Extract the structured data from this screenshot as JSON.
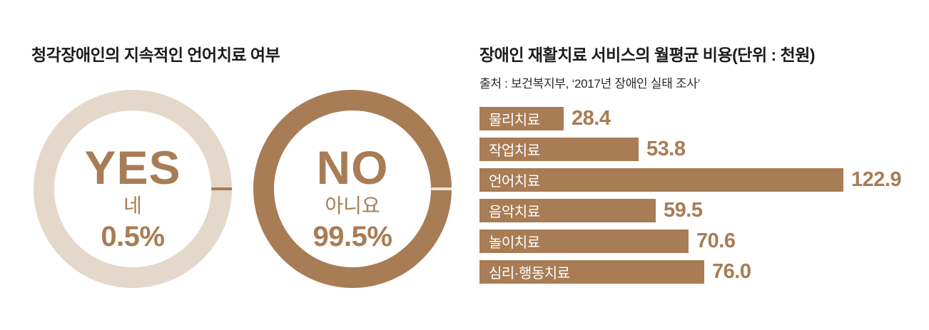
{
  "palette": {
    "brown": "#A87C55",
    "beige": "#E3D8C9",
    "gap_light": "#EAE3D8",
    "title_dark": "#1C1C1C",
    "background": "#FFFFFF"
  },
  "left_chart": {
    "title": "청각장애인의 지속적인 언어치료 여부",
    "donuts": [
      {
        "id": "yes",
        "label_en": "YES",
        "label_ko": "네",
        "percent_text": "0.5%",
        "value": 0.5,
        "ring_color": "#E3D8C9",
        "slice_color": "#A87C55",
        "slice_percent": 0.5,
        "text_color": "#A87C55"
      },
      {
        "id": "no",
        "label_en": "NO",
        "label_ko": "아니요",
        "percent_text": "99.5%",
        "value": 99.5,
        "ring_color": "#A87C55",
        "slice_color": "#EAE3D8",
        "slice_percent": 0.5,
        "text_color": "#A87C55"
      }
    ]
  },
  "right_chart": {
    "title": "장애인 재활치료 서비스의 월평균 비용(단위 : 천원)",
    "source": "출처 : 보건복지부, ‘2017년 장애인 실태 조사’",
    "unit": "천원",
    "bars": [
      {
        "label": "물리치료",
        "value": 28.4,
        "display": "28.4"
      },
      {
        "label": "작업치료",
        "value": 53.8,
        "display": "53.8"
      },
      {
        "label": "언어치료",
        "value": 122.9,
        "display": "122.9"
      },
      {
        "label": "음악치료",
        "value": 59.5,
        "display": "59.5"
      },
      {
        "label": "놀이치료",
        "value": 70.6,
        "display": "70.6"
      },
      {
        "label": "심리·행동치료",
        "value": 76.0,
        "display": "76.0"
      }
    ]
  },
  "chart_data": [
    {
      "type": "pie",
      "subtype": "double-donut",
      "title": "청각장애인의 지속적인 언어치료 여부",
      "labels": [
        "YES (네)",
        "NO (아니요)"
      ],
      "values": [
        0.5,
        99.5
      ],
      "unit": "%",
      "colors": [
        "#E3D8C9",
        "#A87C55"
      ],
      "notes": "Two donut rings side by side; each ring shows a 0.5% contrasting slice at the 3 o'clock position"
    },
    {
      "type": "bar",
      "orientation": "horizontal",
      "title": "장애인 재활치료 서비스의 월평균 비용(단위 : 천원)",
      "source": "출처 : 보건복지부, ‘2017년 장애인 실태 조사’",
      "categories": [
        "물리치료",
        "작업치료",
        "언어치료",
        "음악치료",
        "놀이치료",
        "심리·행동치료"
      ],
      "values": [
        28.4,
        53.8,
        122.9,
        59.5,
        70.6,
        76.0
      ],
      "unit": "천원",
      "xlim": [
        0,
        130
      ],
      "grid": false,
      "legend": false,
      "bar_color": "#A87C55",
      "value_labels": [
        "28.4",
        "53.8",
        "122.9",
        "59.5",
        "70.6",
        "76.0"
      ]
    }
  ]
}
